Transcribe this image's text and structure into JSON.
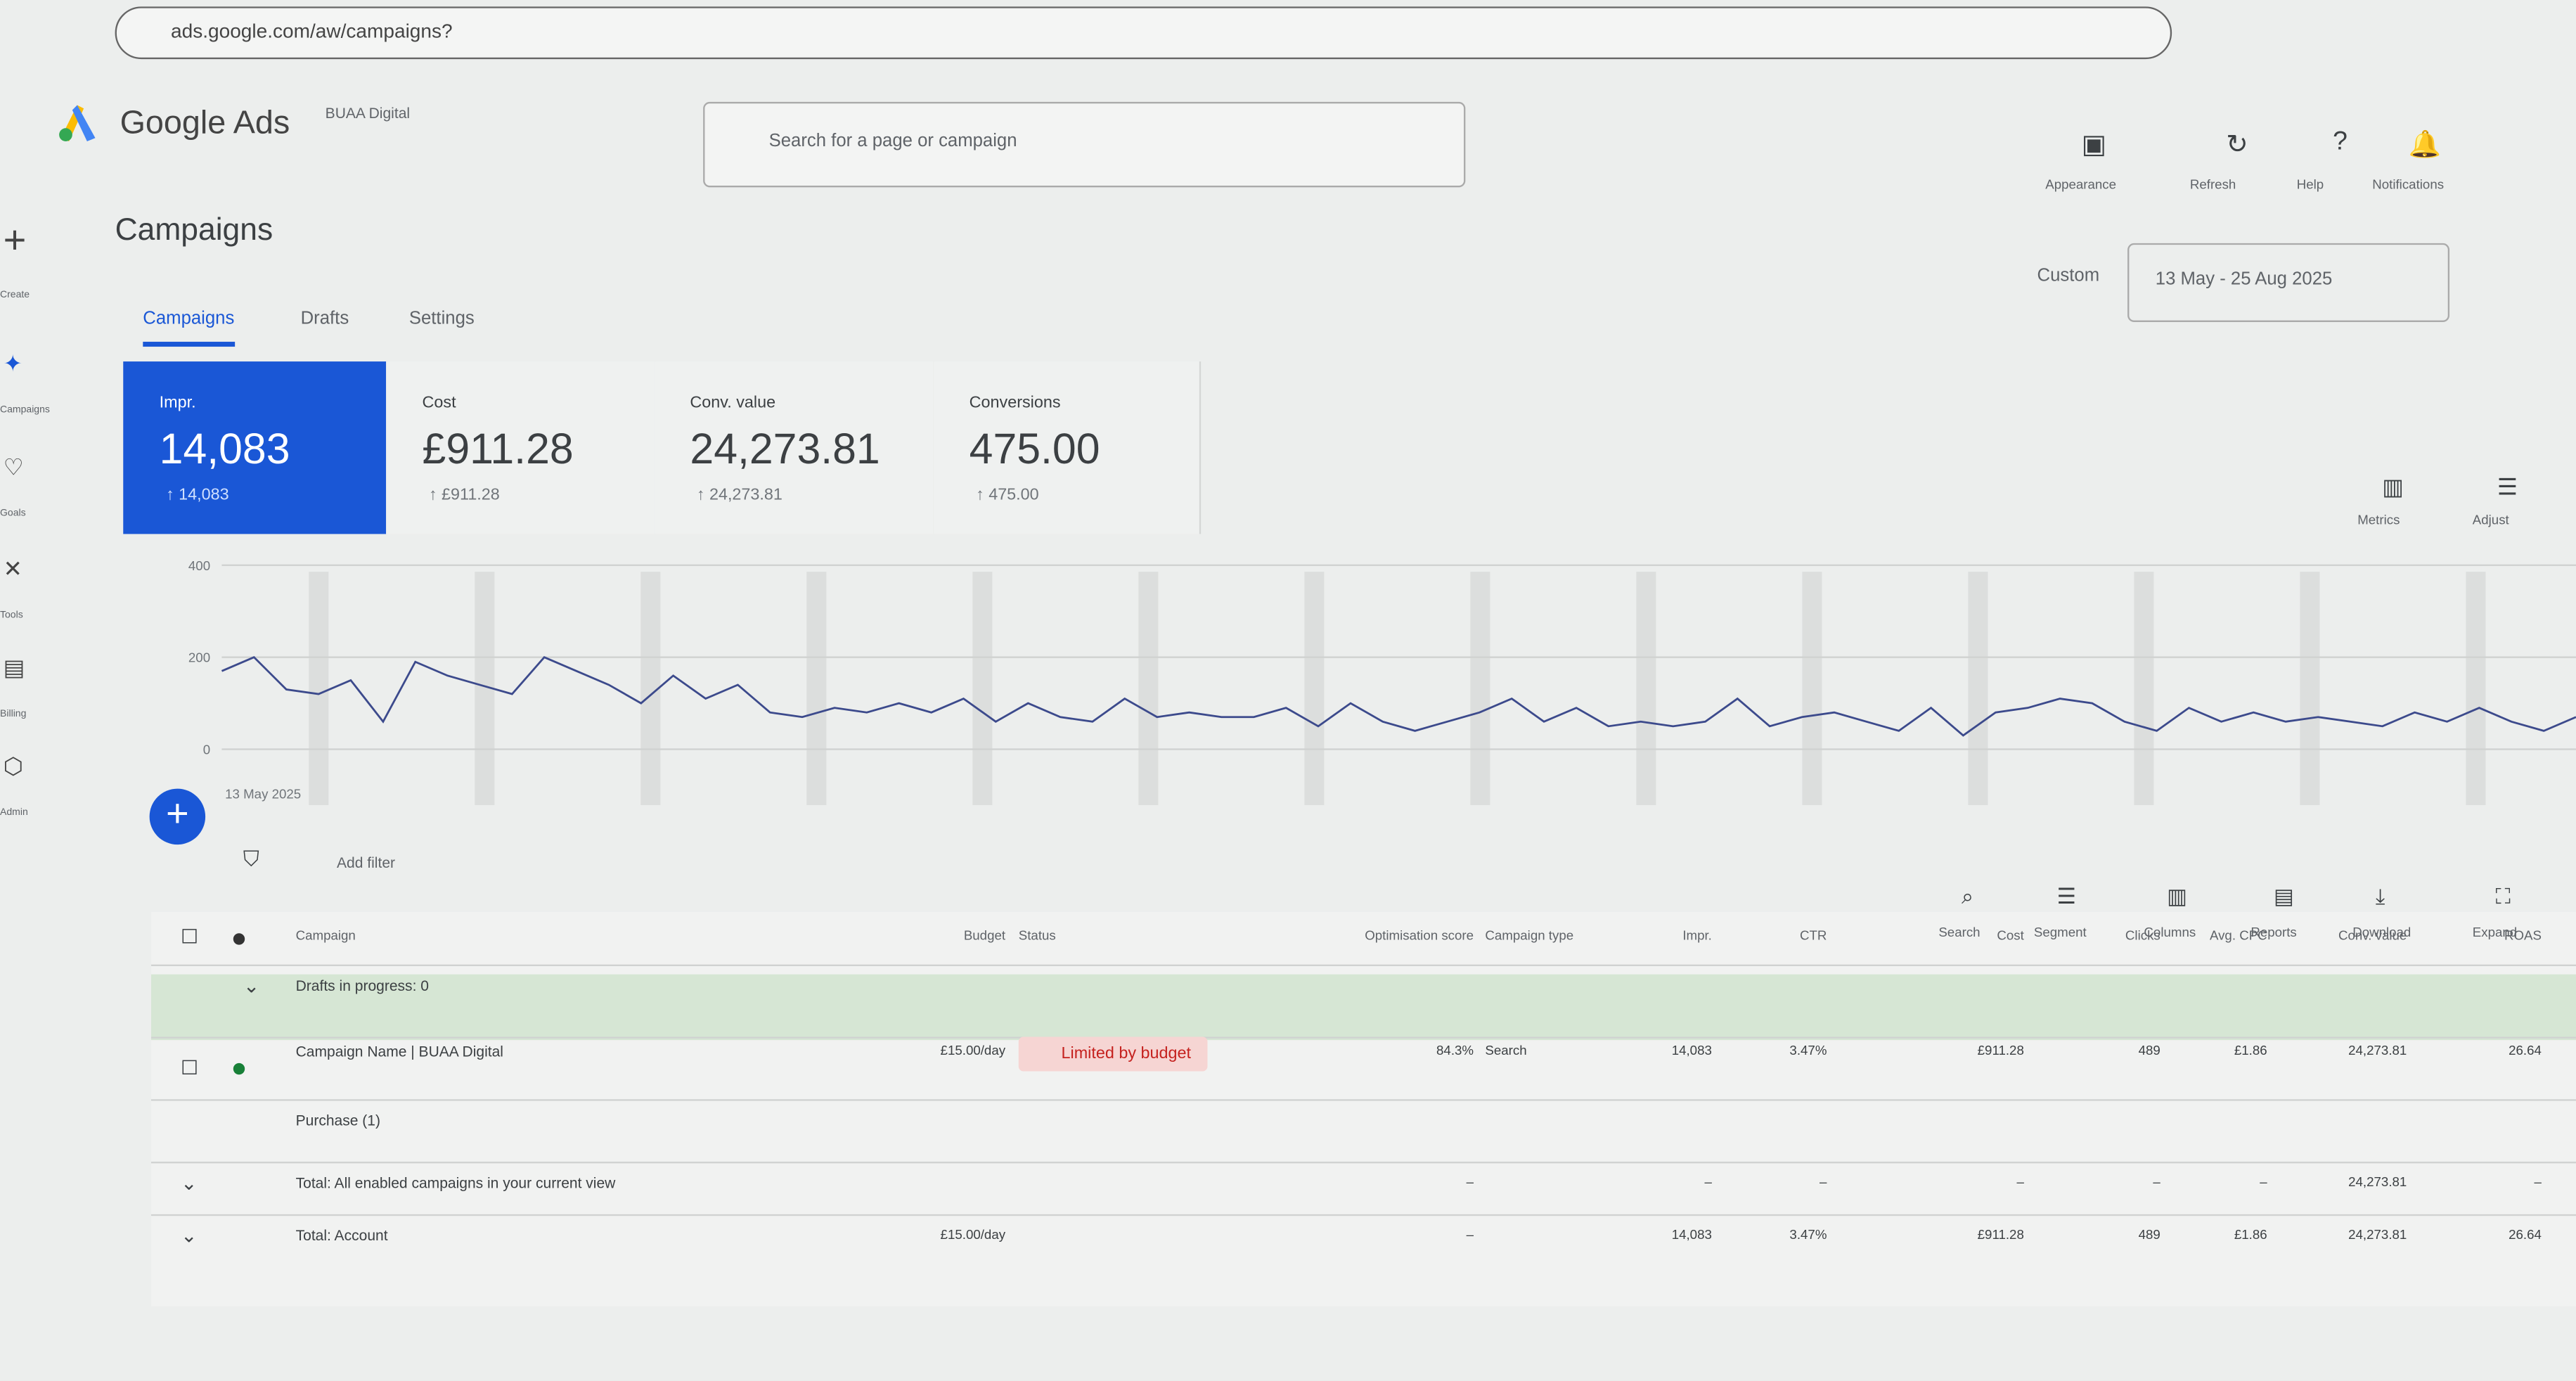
{
  "browser": {
    "url": "ads.google.com/aw/campaigns?"
  },
  "header": {
    "product": "Google Ads",
    "account": "BUAA Digital",
    "search_placeholder": "Search for a page or campaign",
    "actions": [
      "Appearance",
      "Refresh",
      "Help",
      "Notifications"
    ]
  },
  "sidebar": [
    "Create",
    "Campaigns",
    "Goals",
    "Tools",
    "Billing",
    "Admin"
  ],
  "page_title": "Campaigns",
  "tabs": [
    "Campaigns",
    "Drafts",
    "Settings"
  ],
  "date": {
    "label": "Custom",
    "range": "13 May - 25 Aug 2025"
  },
  "scorecards": [
    {
      "label": "Impr.",
      "value": "14,083",
      "sub": "↑ 14,083"
    },
    {
      "label": "Cost",
      "value": "£911.28",
      "sub": "↑ £911.28"
    },
    {
      "label": "Conv. value",
      "value": "24,273.81",
      "sub": "↑ 24,273.81"
    },
    {
      "label": "Conversions",
      "value": "475.00",
      "sub": "↑ 475.00"
    }
  ],
  "chart_tools": [
    "Metrics",
    "Adjust"
  ],
  "chart_data": {
    "type": "line",
    "x_label": "13 May 2025",
    "ylim": [
      0,
      400
    ],
    "yticks": [
      0,
      200,
      400
    ],
    "color": "#3c4a8c",
    "values": [
      170,
      200,
      130,
      120,
      150,
      60,
      190,
      160,
      140,
      120,
      200,
      170,
      140,
      100,
      160,
      110,
      140,
      80,
      70,
      90,
      80,
      100,
      80,
      110,
      60,
      100,
      70,
      60,
      110,
      70,
      80,
      70,
      70,
      90,
      50,
      100,
      60,
      40,
      60,
      80,
      110,
      60,
      90,
      50,
      60,
      50,
      60,
      110,
      50,
      70,
      80,
      60,
      40,
      90,
      30,
      80,
      90,
      110,
      100,
      60,
      40,
      90,
      60,
      80,
      60,
      70,
      60,
      50,
      80,
      60,
      90,
      60,
      40,
      70
    ]
  },
  "filter": "Add filter",
  "table_tools": [
    "Search",
    "Segment",
    "Columns",
    "Reports",
    "Download",
    "Expand"
  ],
  "table": {
    "columns": [
      "Campaign",
      "Budget",
      "Status",
      "Optimisation score",
      "Campaign type",
      "Impr.",
      "CTR",
      "Cost",
      "Clicks",
      "Avg. CPC",
      "Conv. value",
      "ROAS"
    ],
    "rows": [
      [
        "Drafts in progress: 0",
        null,
        null,
        null,
        null,
        null,
        null,
        null,
        null,
        null,
        null,
        null
      ],
      [
        "Campaign Name | BUAA Digital",
        "£15.00/day",
        "Limited by budget",
        "84.3%",
        "Search",
        "14,083",
        "3.47%",
        "£911.28",
        "489",
        "£1.86",
        "24,273.81",
        "26.64"
      ],
      [
        "Purchase (1)",
        null,
        null,
        null,
        null,
        null,
        null,
        null,
        null,
        null,
        null,
        null
      ],
      [
        "Total: All enabled campaigns in your current view",
        null,
        null,
        "–",
        null,
        "–",
        "–",
        "–",
        "–",
        "–",
        "24,273.81",
        "–"
      ],
      [
        "Total: Account",
        "£15.00/day",
        null,
        "–",
        null,
        "14,083",
        "3.47%",
        "£911.28",
        "489",
        "£1.86",
        "24,273.81",
        "26.64"
      ]
    ]
  }
}
